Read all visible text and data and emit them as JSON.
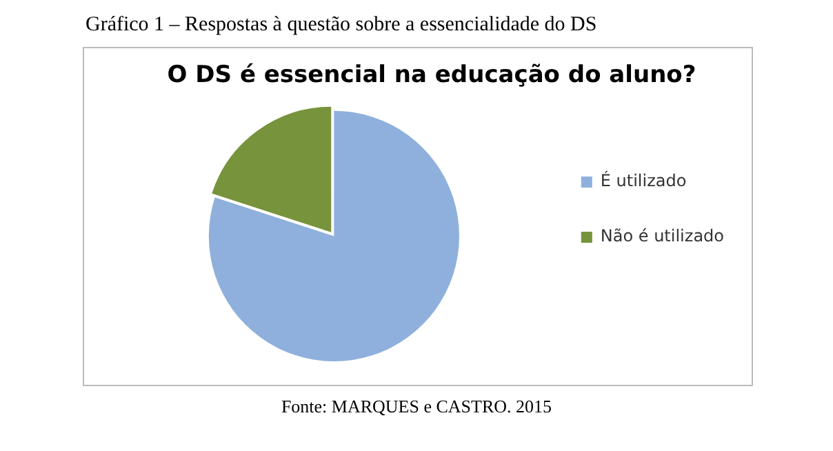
{
  "chart_data": {
    "type": "pie",
    "title": "O DS é essencial na educação do aluno?",
    "categories": [
      "É utilizado",
      "Não é utilizado"
    ],
    "values": [
      80,
      20
    ],
    "colors": [
      "#8fb0dc",
      "#77933c"
    ],
    "legend": "right",
    "annotations": [
      "Gráfico 1 – Respostas à questão sobre a essencialidade do DS",
      "Fonte: MARQUES e CASTRO. 2015"
    ]
  }
}
